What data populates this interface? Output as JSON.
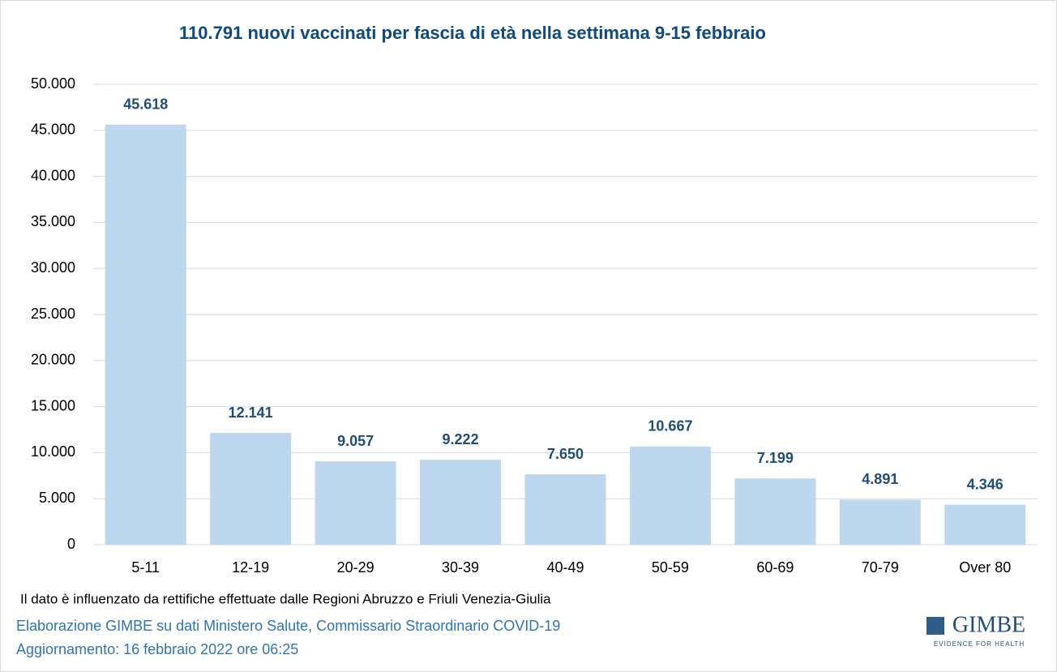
{
  "chart_data": {
    "type": "bar",
    "title": "110.791 nuovi vaccinati per fascia di età nella settimana 9-15 febbraio",
    "categories": [
      "5-11",
      "12-19",
      "20-29",
      "30-39",
      "40-49",
      "50-59",
      "60-69",
      "70-79",
      "Over 80"
    ],
    "values": [
      45618,
      12141,
      9057,
      9222,
      7650,
      10667,
      7199,
      4891,
      4346
    ],
    "value_labels": [
      "45.618",
      "12.141",
      "9.057",
      "9.222",
      "7.650",
      "10.667",
      "7.199",
      "4.891",
      "4.346"
    ],
    "color": "#bdd7ee",
    "ylim": [
      0,
      50000
    ],
    "yticks": [
      0,
      {
        "value": 5000,
        "label": "5.000"
      },
      {
        "value": 10000,
        "label": "10.000"
      },
      {
        "value": 15000,
        "label": "15.000"
      },
      {
        "value": 20000,
        "label": "20.000"
      },
      {
        "value": 25000,
        "label": "25.000"
      },
      {
        "value": 30000,
        "label": "30.000"
      },
      {
        "value": 35000,
        "label": "35.000"
      },
      {
        "value": 40000,
        "label": "40.000"
      },
      {
        "value": 45000,
        "label": "45.000"
      },
      {
        "value": 50000,
        "label": "50.000"
      }
    ],
    "grid": true,
    "note": "Il dato è influenzato da rettifiche effettuate dalle Regioni Abruzzo e Friuli Venezia-Giulia",
    "source": "Elaborazione GIMBE su dati Ministero Salute, Commissario Straordinario COVID-19",
    "updated": "Aggiornamento: 16 febbraio 2022 ore 06:25",
    "logo": "GIMBE",
    "logo_tagline": "EVIDENCE FOR HEALTH"
  }
}
